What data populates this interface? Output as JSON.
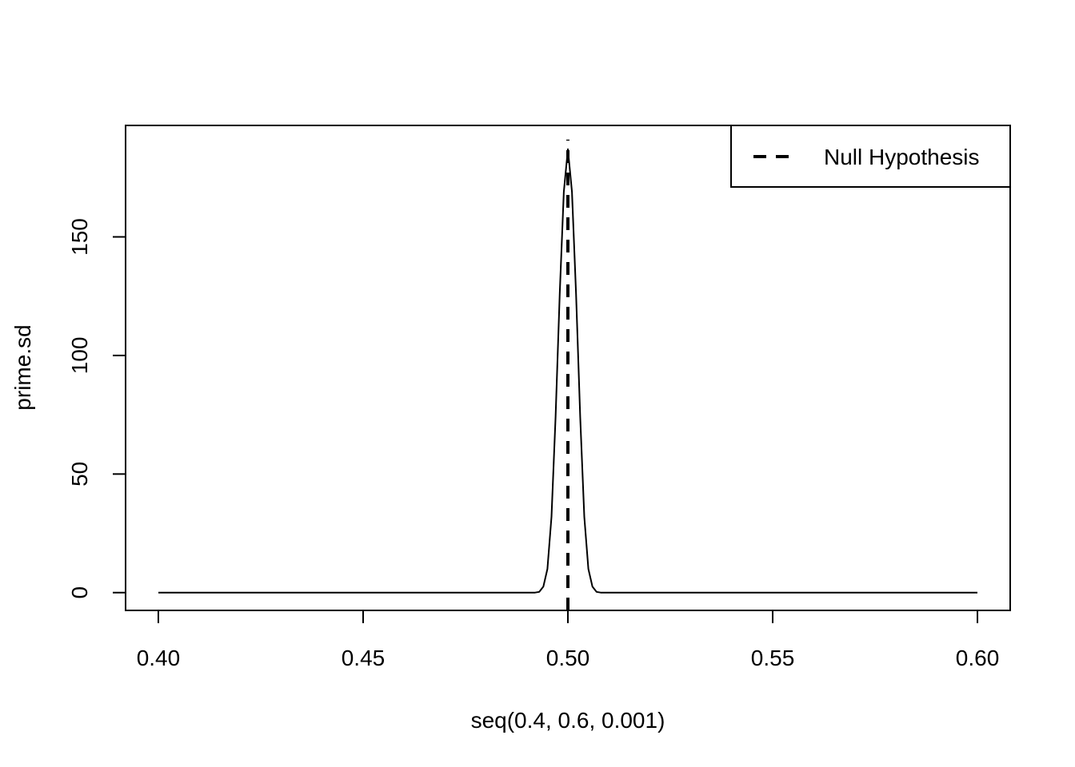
{
  "chart_data": {
    "type": "line",
    "xlabel": "seq(0.4, 0.6, 0.001)",
    "ylabel": "prime.sd",
    "xlim": [
      0.392,
      0.608
    ],
    "ylim": [
      -7.5,
      197
    ],
    "x_ticks": [
      {
        "value": 0.4,
        "label": "0.40"
      },
      {
        "value": 0.45,
        "label": "0.45"
      },
      {
        "value": 0.5,
        "label": "0.50"
      },
      {
        "value": 0.55,
        "label": "0.55"
      },
      {
        "value": 0.6,
        "label": "0.60"
      }
    ],
    "y_ticks": [
      {
        "value": 0,
        "label": "0"
      },
      {
        "value": 50,
        "label": "50"
      },
      {
        "value": 100,
        "label": "100"
      },
      {
        "value": 150,
        "label": "150"
      }
    ],
    "series": [
      {
        "style": "solid",
        "x": [
          0.4,
          0.492,
          0.493,
          0.494,
          0.495,
          0.496,
          0.497,
          0.498,
          0.499,
          0.5,
          0.501,
          0.502,
          0.503,
          0.504,
          0.505,
          0.506,
          0.507,
          0.508,
          0.6
        ],
        "y": [
          0,
          0,
          0.3,
          2.5,
          10,
          32,
          74,
          126,
          169,
          187,
          169,
          126,
          74,
          32,
          10,
          2.5,
          0.3,
          0,
          0
        ]
      }
    ],
    "vline": {
      "x": 0.5,
      "y_from": -7.5,
      "y_to": 191,
      "style": "dashed",
      "name": "Null Hypothesis"
    },
    "legend": {
      "position": "top-right",
      "entries": [
        {
          "label": "Null Hypothesis",
          "style": "dashed"
        }
      ]
    },
    "grid": false
  }
}
